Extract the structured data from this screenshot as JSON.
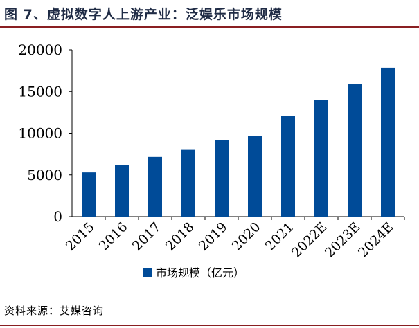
{
  "figure": {
    "title": "图 7、虚拟数字人上游产业：泛娱乐市场规模",
    "source": "资料来源：艾媒咨询"
  },
  "chart_data": {
    "type": "bar",
    "categories": [
      "2015",
      "2016",
      "2017",
      "2018",
      "2019",
      "2020",
      "2021",
      "2022E",
      "2023E",
      "2024E"
    ],
    "series": [
      {
        "name": "市场规模（亿元）",
        "values": [
          5300,
          6150,
          7150,
          8000,
          9150,
          9650,
          12050,
          13950,
          15850,
          17850
        ],
        "color": "#004b98"
      }
    ],
    "yticks": [
      "0",
      "5000",
      "10000",
      "15000",
      "20000"
    ],
    "ylim": [
      0,
      20000
    ],
    "legend_position": "bottom-center",
    "grid": false
  }
}
